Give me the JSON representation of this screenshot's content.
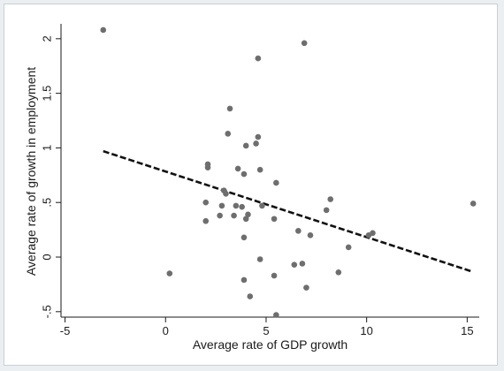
{
  "chart_data": {
    "type": "scatter",
    "title": "",
    "xlabel": "Average rate of GDP growth",
    "ylabel": "Average rate of growth in employment",
    "xlim": [
      -5.2,
      15.6
    ],
    "ylim": [
      -0.55,
      2.12
    ],
    "x_ticks": [
      -5,
      0,
      5,
      10,
      15
    ],
    "x_tick_labels": [
      "-5",
      "0",
      "5",
      "10",
      "15"
    ],
    "y_ticks": [
      -0.5,
      0,
      0.5,
      1,
      1.5,
      2
    ],
    "y_tick_labels": [
      "-.5",
      "0",
      ".5",
      "1",
      "1.5",
      "2"
    ],
    "grid": false,
    "legend": "none",
    "point_color": "#6e6e6e",
    "fit_line_color": "#111111",
    "points": [
      {
        "x": -3.1,
        "y": 2.08
      },
      {
        "x": 0.2,
        "y": -0.15
      },
      {
        "x": 2.0,
        "y": 0.5
      },
      {
        "x": 2.1,
        "y": 0.85
      },
      {
        "x": 2.1,
        "y": 0.82
      },
      {
        "x": 2.0,
        "y": 0.33
      },
      {
        "x": 2.7,
        "y": 0.38
      },
      {
        "x": 2.8,
        "y": 0.47
      },
      {
        "x": 2.9,
        "y": 0.61
      },
      {
        "x": 3.0,
        "y": 0.58
      },
      {
        "x": 3.1,
        "y": 1.13
      },
      {
        "x": 3.2,
        "y": 1.36
      },
      {
        "x": 3.4,
        "y": 0.38
      },
      {
        "x": 3.5,
        "y": 0.47
      },
      {
        "x": 3.6,
        "y": 0.81
      },
      {
        "x": 3.8,
        "y": 0.46
      },
      {
        "x": 3.9,
        "y": 0.76
      },
      {
        "x": 3.9,
        "y": 0.18
      },
      {
        "x": 3.9,
        "y": -0.21
      },
      {
        "x": 4.0,
        "y": 1.02
      },
      {
        "x": 4.0,
        "y": 0.35
      },
      {
        "x": 4.1,
        "y": 0.39
      },
      {
        "x": 4.2,
        "y": -0.36
      },
      {
        "x": 4.5,
        "y": 1.04
      },
      {
        "x": 4.6,
        "y": 1.1
      },
      {
        "x": 4.6,
        "y": 1.82
      },
      {
        "x": 4.7,
        "y": 0.8
      },
      {
        "x": 4.7,
        "y": -0.02
      },
      {
        "x": 4.8,
        "y": 0.47
      },
      {
        "x": 5.4,
        "y": 0.35
      },
      {
        "x": 5.4,
        "y": -0.17
      },
      {
        "x": 5.5,
        "y": 0.68
      },
      {
        "x": 5.5,
        "y": -0.53
      },
      {
        "x": 6.4,
        "y": -0.07
      },
      {
        "x": 6.6,
        "y": 0.24
      },
      {
        "x": 6.8,
        "y": -0.06
      },
      {
        "x": 6.9,
        "y": 1.96
      },
      {
        "x": 7.0,
        "y": -0.28
      },
      {
        "x": 7.2,
        "y": 0.2
      },
      {
        "x": 8.0,
        "y": 0.43
      },
      {
        "x": 8.2,
        "y": 0.53
      },
      {
        "x": 8.6,
        "y": -0.14
      },
      {
        "x": 9.1,
        "y": 0.09
      },
      {
        "x": 10.1,
        "y": 0.2
      },
      {
        "x": 10.3,
        "y": 0.22
      },
      {
        "x": 15.3,
        "y": 0.49
      }
    ],
    "fit_line": {
      "x": [
        -3.1,
        15.2
      ],
      "y": [
        0.97,
        -0.13
      ]
    }
  }
}
